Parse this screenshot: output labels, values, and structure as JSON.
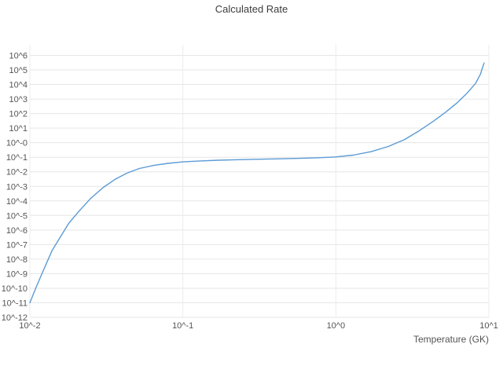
{
  "chart_data": {
    "type": "line",
    "title": "Calculated Rate",
    "xlabel": "Temperature (GK)",
    "ylabel": "",
    "x_scale": "log",
    "y_scale": "log",
    "xlim": [
      0.01,
      10
    ],
    "ylim": [
      1e-12,
      1000000.0
    ],
    "grid": true,
    "legend": false,
    "colors": {
      "line": "#5b9bd5",
      "grid": "#e6e6e6",
      "grid_minor": "#ececec",
      "text": "#545454",
      "background": "#ffffff"
    },
    "x_ticks": [
      {
        "value": 0.01,
        "label": "10^-2"
      },
      {
        "value": 0.1,
        "label": "10^-1"
      },
      {
        "value": 1,
        "label": "10^0"
      },
      {
        "value": 10,
        "label": "10^1"
      }
    ],
    "y_ticks": [
      {
        "exp": 6,
        "label": "10^6"
      },
      {
        "exp": 5,
        "label": "10^5"
      },
      {
        "exp": 4,
        "label": "10^4"
      },
      {
        "exp": 3,
        "label": "10^3"
      },
      {
        "exp": 2,
        "label": "10^2"
      },
      {
        "exp": 1,
        "label": "10^1"
      },
      {
        "exp": 0,
        "label": "10^-0"
      },
      {
        "exp": -1,
        "label": "10^-1"
      },
      {
        "exp": -2,
        "label": "10^-2"
      },
      {
        "exp": -3,
        "label": "10^-3"
      },
      {
        "exp": -4,
        "label": "10^-4"
      },
      {
        "exp": -5,
        "label": "10^-5"
      },
      {
        "exp": -6,
        "label": "10^-6"
      },
      {
        "exp": -7,
        "label": "10^-7"
      },
      {
        "exp": -8,
        "label": "10^-8"
      },
      {
        "exp": -9,
        "label": "10^-9"
      },
      {
        "exp": -10,
        "label": "10^-10"
      },
      {
        "exp": -11,
        "label": "10^-11"
      },
      {
        "exp": -12,
        "label": "10^-12"
      }
    ],
    "series": [
      {
        "name": "Calculated Rate",
        "points": [
          [
            0.01,
            1e-11
          ],
          [
            0.011,
            1.2e-10
          ],
          [
            0.012,
            1e-09
          ],
          [
            0.013,
            7e-09
          ],
          [
            0.014,
            4e-08
          ],
          [
            0.016,
            4e-07
          ],
          [
            0.018,
            3e-06
          ],
          [
            0.021,
            2e-05
          ],
          [
            0.025,
            0.00015
          ],
          [
            0.03,
            0.0008
          ],
          [
            0.036,
            0.003
          ],
          [
            0.043,
            0.008
          ],
          [
            0.052,
            0.017
          ],
          [
            0.065,
            0.028
          ],
          [
            0.08,
            0.038
          ],
          [
            0.1,
            0.048
          ],
          [
            0.13,
            0.056
          ],
          [
            0.17,
            0.062
          ],
          [
            0.22,
            0.067
          ],
          [
            0.3,
            0.072
          ],
          [
            0.4,
            0.077
          ],
          [
            0.55,
            0.083
          ],
          [
            0.75,
            0.092
          ],
          [
            1.0,
            0.105
          ],
          [
            1.3,
            0.14
          ],
          [
            1.7,
            0.24
          ],
          [
            2.2,
            0.55
          ],
          [
            2.8,
            1.6
          ],
          [
            3.5,
            6.5
          ],
          [
            4.3,
            28.0
          ],
          [
            5.2,
            120.0
          ],
          [
            6.2,
            550.0
          ],
          [
            7.2,
            2500.0
          ],
          [
            8.2,
            12000.0
          ],
          [
            8.8,
            50000.0
          ],
          [
            9.3,
            300000.0
          ]
        ]
      }
    ]
  }
}
